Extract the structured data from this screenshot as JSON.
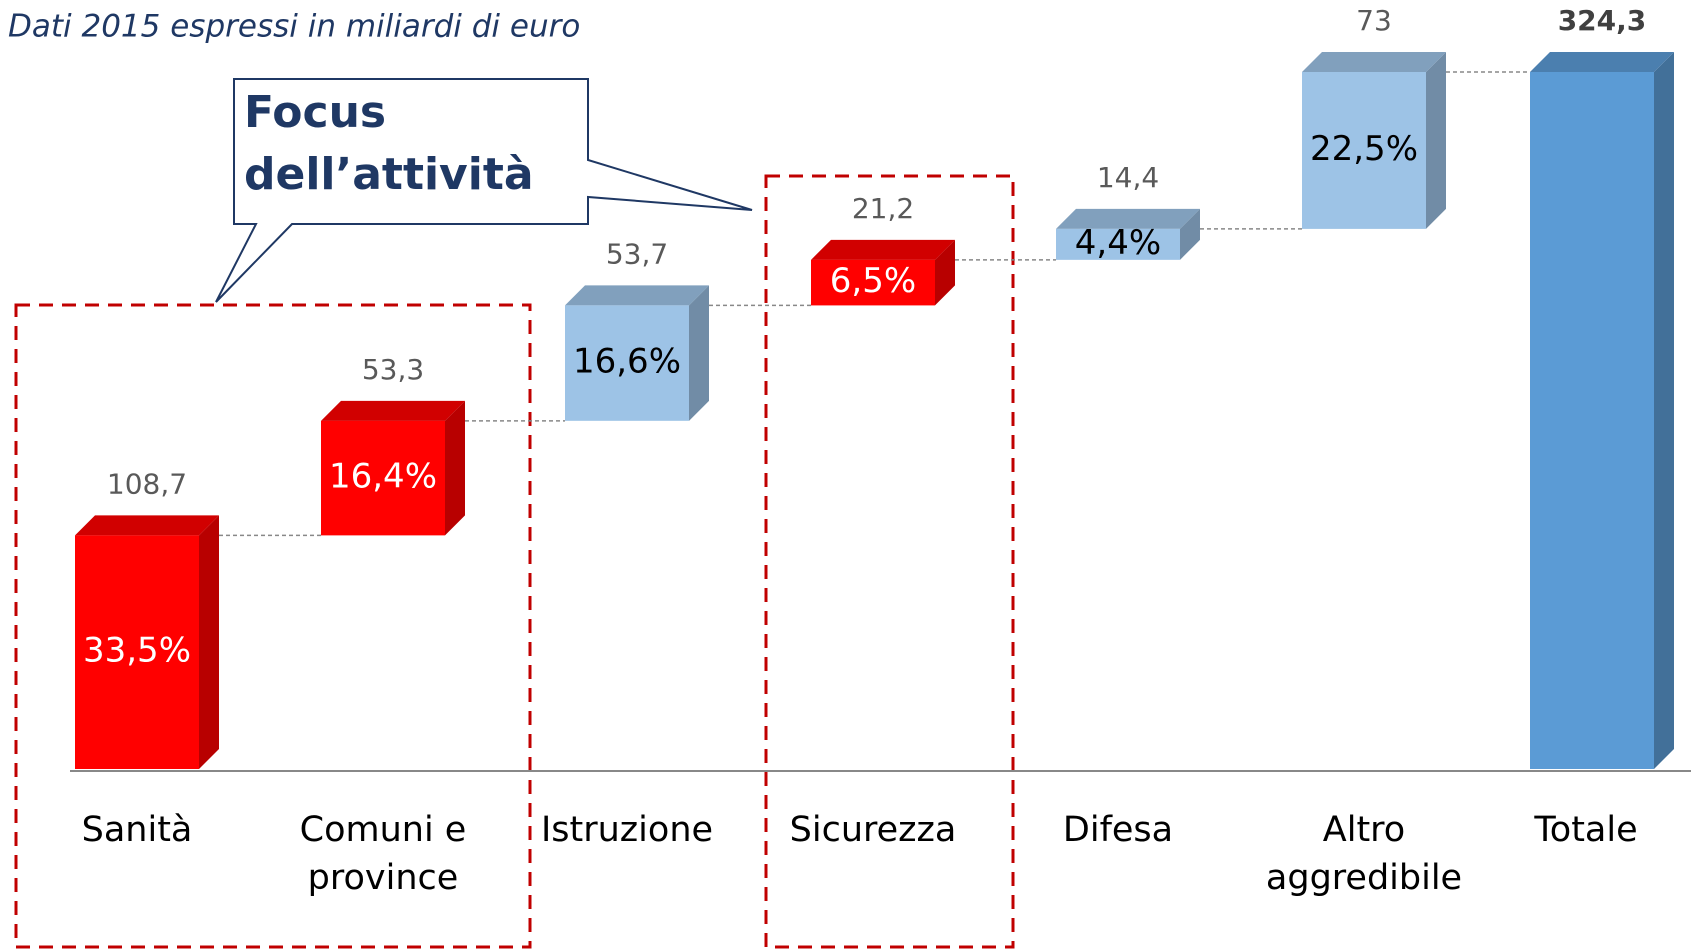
{
  "chart_data": {
    "type": "waterfall",
    "subtitle": "Dati 2015 espressi in miliardi di euro",
    "annotation": "Focus dell’attività",
    "categories": [
      "Sanità",
      "Comuni e province",
      "Istruzione",
      "Sicurezza",
      "Difesa",
      "Altro aggredibile",
      "Totale"
    ],
    "values": [
      108.7,
      53.3,
      53.7,
      21.2,
      14.4,
      73,
      324.3
    ],
    "value_labels": [
      "108,7",
      "53,3",
      "53,7",
      "21,2",
      "14,4",
      "73",
      "324,3"
    ],
    "share_labels": [
      "33,5%",
      "16,4%",
      "16,6%",
      "6,5%",
      "4,4%",
      "22,5%",
      null
    ],
    "colors": [
      "#ff0000",
      "#ff0000",
      "#9dc3e6",
      "#ff0000",
      "#9dc3e6",
      "#9dc3e6",
      "#5b9bd5"
    ],
    "total_index": 6,
    "ylim": [
      0,
      324.3
    ]
  }
}
